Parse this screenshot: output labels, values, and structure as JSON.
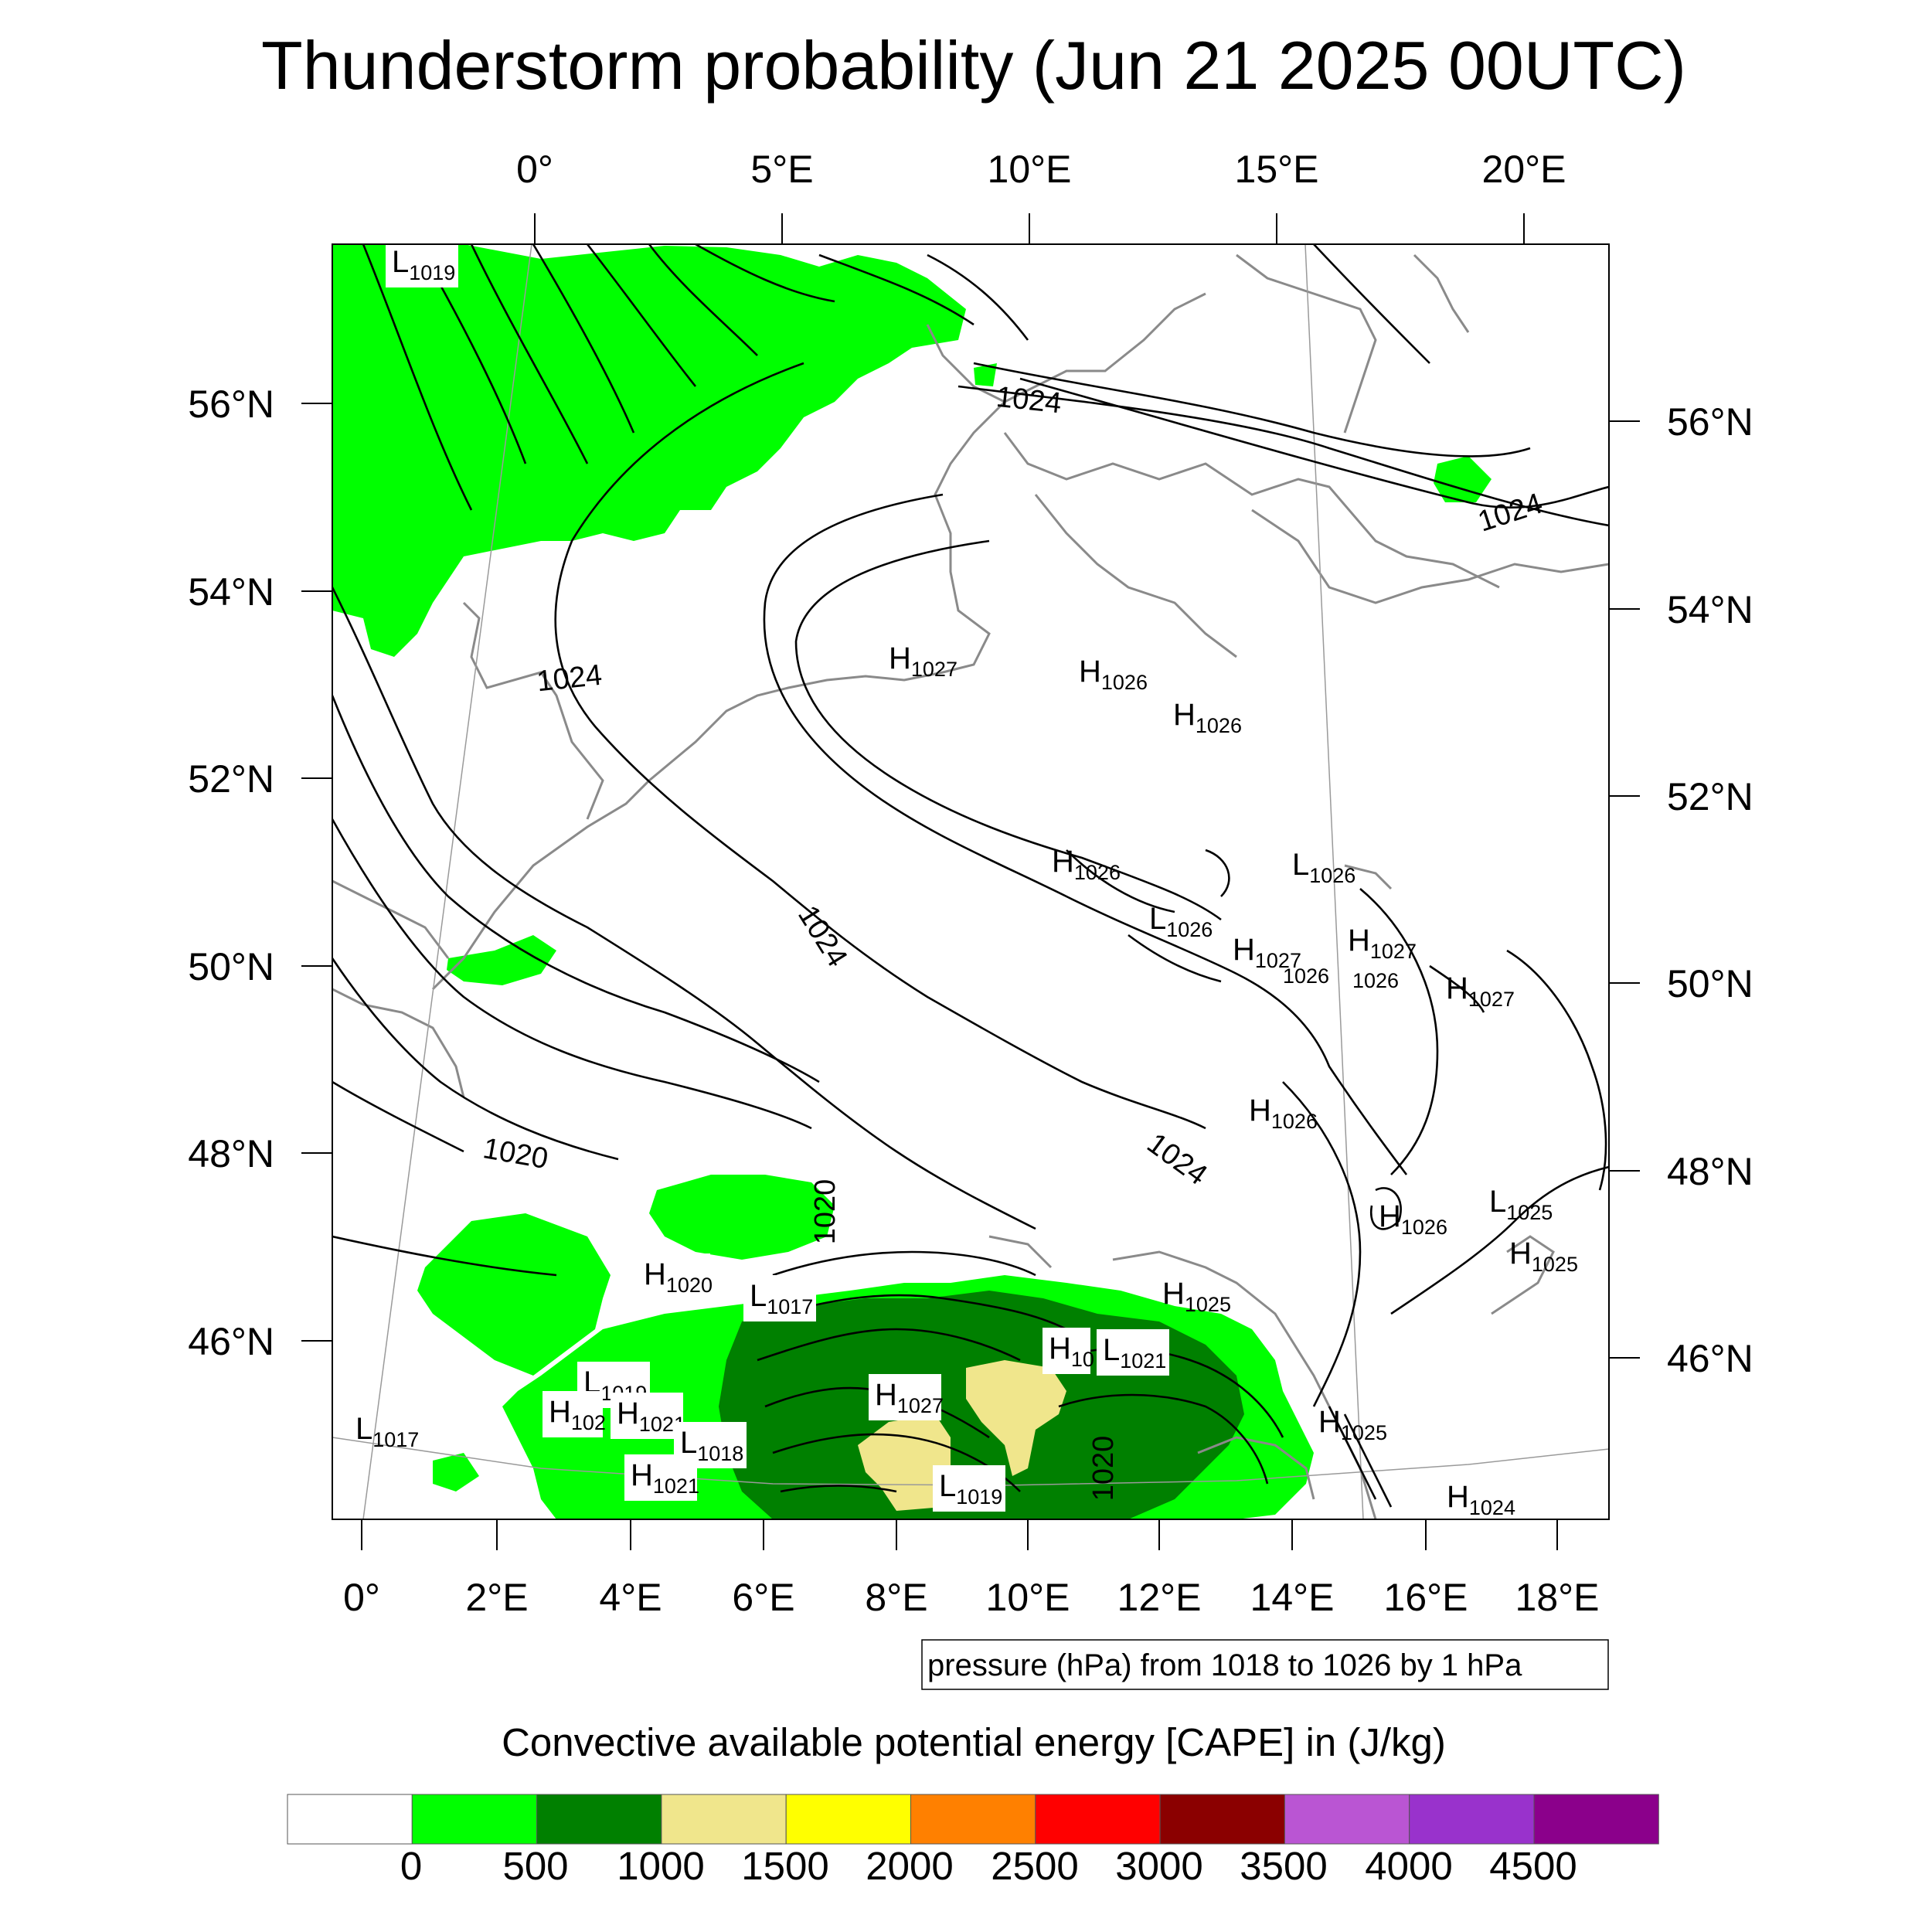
{
  "title": "Thunderstorm probability (Jun 21 2025 00UTC)",
  "top_lon_labels": [
    "0°",
    "5°E",
    "10°E",
    "15°E",
    "20°E"
  ],
  "bottom_lon_labels": [
    "0°",
    "2°E",
    "4°E",
    "6°E",
    "8°E",
    "10°E",
    "12°E",
    "14°E",
    "16°E",
    "18°E"
  ],
  "left_lat_labels": [
    "56°N",
    "54°N",
    "52°N",
    "50°N",
    "48°N",
    "46°N"
  ],
  "right_lat_labels": [
    "56°N",
    "54°N",
    "52°N",
    "50°N",
    "48°N",
    "46°N"
  ],
  "isobar_labels": [
    "1024",
    "1024",
    "1024",
    "1024",
    "1024",
    "1020",
    "1020",
    "1020"
  ],
  "pressure_centers": [
    {
      "type": "L",
      "value": "1019"
    },
    {
      "type": "H",
      "value": "1027"
    },
    {
      "type": "H",
      "value": "1026"
    },
    {
      "type": "H",
      "value": "1026"
    },
    {
      "type": "H",
      "value": "1026"
    },
    {
      "type": "L",
      "value": "1026"
    },
    {
      "type": "L",
      "value": "1026"
    },
    {
      "type": "H",
      "value": "1027"
    },
    {
      "type": "H",
      "value": "1027"
    },
    {
      "type": "H",
      "value": "1027"
    },
    {
      "type": "H",
      "value": "1026"
    },
    {
      "type": "H",
      "value": "1026"
    },
    {
      "type": "L",
      "value": "1025"
    },
    {
      "type": "H",
      "value": "1025"
    },
    {
      "type": "H",
      "value": "1025"
    },
    {
      "type": "H",
      "value": "1025"
    },
    {
      "type": "H",
      "value": "1024"
    },
    {
      "type": "H",
      "value": "1020"
    },
    {
      "type": "L",
      "value": "1017"
    },
    {
      "type": "L",
      "value": "1019"
    },
    {
      "type": "H",
      "value": "102"
    },
    {
      "type": "H",
      "value": "1021"
    },
    {
      "type": "L",
      "value": "1018"
    },
    {
      "type": "H",
      "value": "1021"
    },
    {
      "type": "L",
      "value": "1017"
    },
    {
      "type": "H",
      "value": "1027"
    },
    {
      "type": "L",
      "value": "1019"
    },
    {
      "type": "H",
      "value": "10"
    },
    {
      "type": "L",
      "value": "1021"
    }
  ],
  "partial_labels": [
    "1026",
    "1026"
  ],
  "contour_note": "pressure (hPa) from 1018 to 1026 by 1 hPa",
  "colorbar": {
    "title": "Convective available potential energy [CAPE] in (J/kg)",
    "labels": [
      "0",
      "500",
      "1000",
      "1500",
      "2000",
      "2500",
      "3000",
      "3500",
      "4000",
      "4500"
    ],
    "colors": [
      "#ffffff",
      "#00ff00",
      "#008000",
      "#f0e68c",
      "#ffff00",
      "#ff8000",
      "#ff0000",
      "#8b0000",
      "#ba55d3",
      "#9932cc",
      "#8b008b"
    ]
  },
  "cape_colors": {
    "low": "#00ff00",
    "mid": "#008000",
    "high": "#f0e68c"
  }
}
